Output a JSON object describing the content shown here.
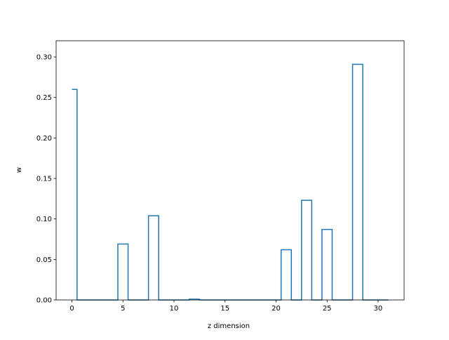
{
  "chart_data": {
    "type": "step",
    "title": "",
    "xlabel": "z dimension",
    "ylabel": "w",
    "xlim": [
      -1.55,
      32.55
    ],
    "ylim": [
      0.0,
      0.32
    ],
    "x_ticks": [
      0,
      5,
      10,
      15,
      20,
      25,
      30
    ],
    "y_ticks": [
      0.0,
      0.05,
      0.1,
      0.15,
      0.2,
      0.25,
      0.3
    ],
    "x_tick_labels": [
      "0",
      "5",
      "10",
      "15",
      "20",
      "25",
      "30"
    ],
    "y_tick_labels": [
      "0.00",
      "0.05",
      "0.10",
      "0.15",
      "0.20",
      "0.25",
      "0.30"
    ],
    "grid": false,
    "step_where": "mid",
    "x": [
      0,
      1,
      2,
      3,
      4,
      5,
      6,
      7,
      8,
      9,
      10,
      11,
      12,
      13,
      14,
      15,
      16,
      17,
      18,
      19,
      20,
      21,
      22,
      23,
      24,
      25,
      26,
      27,
      28,
      29,
      30,
      31
    ],
    "values": [
      0.26,
      0,
      0,
      0,
      0,
      0.069,
      0,
      0,
      0.104,
      0,
      0,
      0,
      0.001,
      0,
      0,
      0,
      0,
      0,
      0,
      0,
      0,
      0.062,
      0,
      0.123,
      0,
      0.087,
      0,
      0,
      0.291,
      0,
      0,
      0
    ],
    "color": "#1f77b4"
  }
}
